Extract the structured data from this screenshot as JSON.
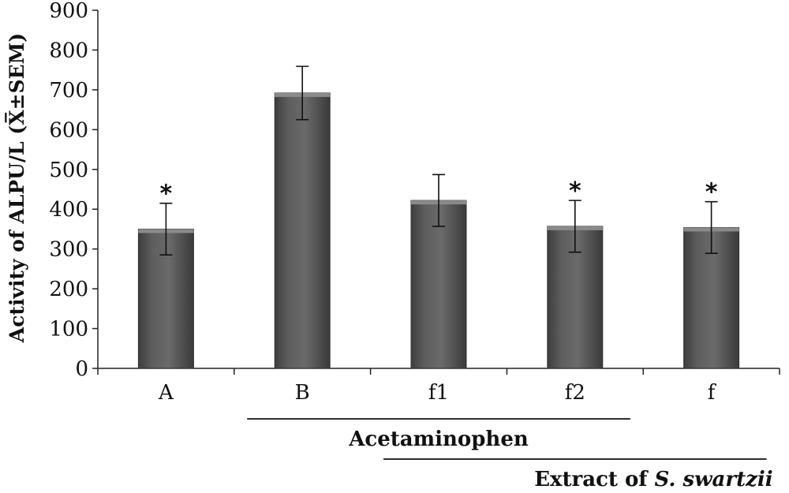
{
  "chart_data": {
    "type": "bar",
    "categories": [
      "A",
      "B",
      "f1",
      "f2",
      "f"
    ],
    "values": [
      350,
      692,
      422,
      357,
      354
    ],
    "errors": [
      65,
      67,
      65,
      65,
      65
    ],
    "significant": [
      true,
      false,
      false,
      true,
      true
    ],
    "significance_mark": "*",
    "ylabel": "Activity of ALPU/L (X̅±SEM)",
    "ylim": [
      0,
      900
    ],
    "yticks": [
      0,
      100,
      200,
      300,
      400,
      500,
      600,
      700,
      800,
      900
    ],
    "bar_color": "#5a5a5a",
    "grid": false,
    "groups": [
      {
        "label": "Acetaminophen",
        "from": "B",
        "to": "f2"
      },
      {
        "label": "Extract of S. swartzii",
        "label_plain": "Extract of ",
        "label_italic": "S. swartzii",
        "from": "f1",
        "to": "f"
      }
    ]
  }
}
